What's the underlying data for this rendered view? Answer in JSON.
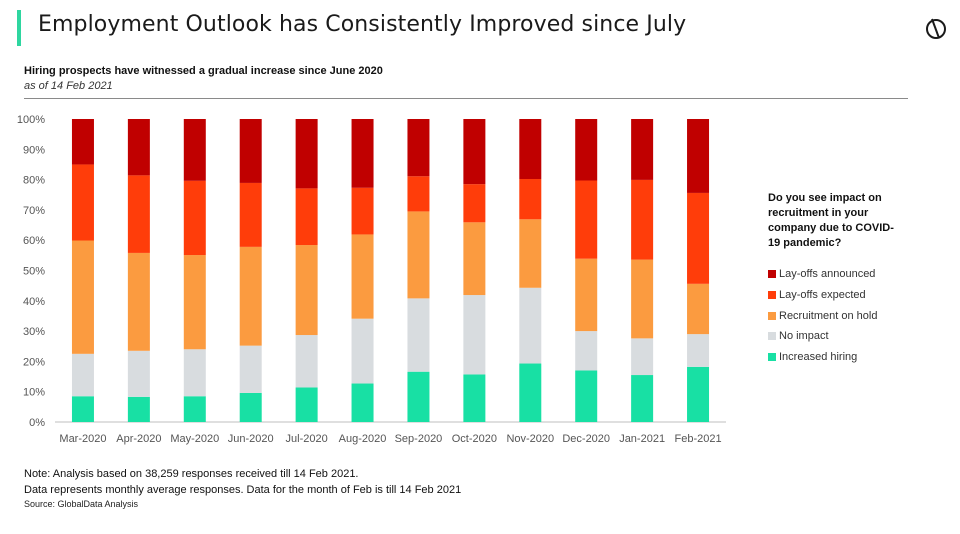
{
  "header": {
    "title": "Employment Outlook has Consistently Improved since July",
    "accent_color": "#2ed6a0",
    "logo_icon": "globaldata-logo-icon"
  },
  "chart_header": {
    "subtitle": "Hiring prospects have witnessed a gradual increase since June 2020",
    "as_of": "as of 14 Feb 2021"
  },
  "legend": {
    "title": "Do you see impact on recruitment in your company due to COVID-19 pandemic?",
    "items": [
      {
        "label": "Lay-offs announced",
        "color": "#c00000"
      },
      {
        "label": "Lay-offs expected",
        "color": "#ff3d0a"
      },
      {
        "label": "Recruitment on hold",
        "color": "#fb9b40"
      },
      {
        "label": "No impact",
        "color": "#d8dcdf"
      },
      {
        "label": "Increased hiring",
        "color": "#18e0a4"
      }
    ]
  },
  "chart_data": {
    "type": "bar",
    "stacked": true,
    "categories": [
      "Mar-2020",
      "Apr-2020",
      "May-2020",
      "Jun-2020",
      "Jul-2020",
      "Aug-2020",
      "Sep-2020",
      "Oct-2020",
      "Nov-2020",
      "Dec-2020",
      "Jan-2021",
      "Feb-2021"
    ],
    "yticks": [
      "0%",
      "10%",
      "20%",
      "30%",
      "40%",
      "50%",
      "60%",
      "70%",
      "80%",
      "90%",
      "100%"
    ],
    "ylim": [
      0,
      100
    ],
    "grid": false,
    "legend_position": "right",
    "series": [
      {
        "name": "Increased hiring",
        "color": "#18e0a4",
        "values": [
          8.5,
          8.3,
          8.5,
          9.6,
          11.4,
          12.7,
          16.6,
          15.7,
          19.3,
          17.0,
          15.5,
          18.2
        ]
      },
      {
        "name": "No impact",
        "color": "#d8dcdf",
        "values": [
          14.0,
          15.2,
          15.5,
          15.6,
          17.3,
          21.4,
          24.2,
          26.2,
          25.0,
          13.0,
          12.1,
          10.8
        ]
      },
      {
        "name": "Recruitment on hold",
        "color": "#fb9b40",
        "values": [
          37.4,
          32.3,
          31.1,
          32.6,
          29.7,
          27.8,
          28.7,
          24.0,
          22.6,
          23.9,
          26.0,
          16.6
        ]
      },
      {
        "name": "Lay-offs expected",
        "color": "#ff3d0a",
        "values": [
          25.1,
          25.6,
          24.5,
          21.1,
          18.7,
          15.4,
          11.6,
          12.6,
          13.3,
          25.8,
          26.3,
          30.0
        ]
      },
      {
        "name": "Lay-offs announced",
        "color": "#c00000",
        "values": [
          15.0,
          18.6,
          20.4,
          21.1,
          22.9,
          22.7,
          18.9,
          21.5,
          19.8,
          20.3,
          20.1,
          24.4
        ]
      }
    ]
  },
  "notes": {
    "line1": "Note: Analysis based on 38,259 responses received till 14 Feb 2021.",
    "line2": "Data represents monthly average responses. Data for the month of Feb is till 14 Feb 2021",
    "source": "Source: GlobalData Analysis"
  }
}
